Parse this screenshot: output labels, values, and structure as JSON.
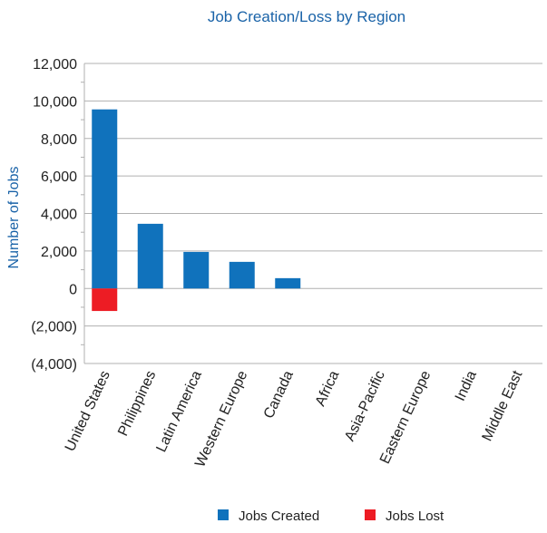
{
  "chart_data": {
    "type": "bar",
    "stacked": true,
    "title": "Job Creation/Loss by Region",
    "xlabel": "",
    "ylabel": "Number of Jobs",
    "ylim": [
      -4000,
      12000
    ],
    "yticks": [
      12000,
      10000,
      8000,
      6000,
      4000,
      2000,
      0,
      -2000,
      -4000
    ],
    "ytick_labels": [
      "12,000",
      "10,000",
      "8,000",
      "6,000",
      "4,000",
      "2,000",
      "0",
      "(2,000)",
      "(4,000)"
    ],
    "grid": true,
    "legend_position": "bottom",
    "categories": [
      "United States",
      "Philippines",
      "Latin America",
      "Western Europe",
      "Canada",
      "Africa",
      "Asia-Pacific",
      "Eastern Europe",
      "India",
      "Middle East"
    ],
    "series": [
      {
        "name": "Jobs Created",
        "color": "#1072bc",
        "values": [
          9550,
          3450,
          1950,
          1420,
          550,
          0,
          0,
          0,
          0,
          0
        ]
      },
      {
        "name": "Jobs Lost",
        "color": "#ed1c24",
        "values": [
          -1200,
          0,
          0,
          0,
          0,
          0,
          0,
          0,
          0,
          0
        ]
      }
    ]
  },
  "colors": {
    "title": "#1a63a8",
    "axis_text": "#222222",
    "grid": "#b0b0b0"
  }
}
